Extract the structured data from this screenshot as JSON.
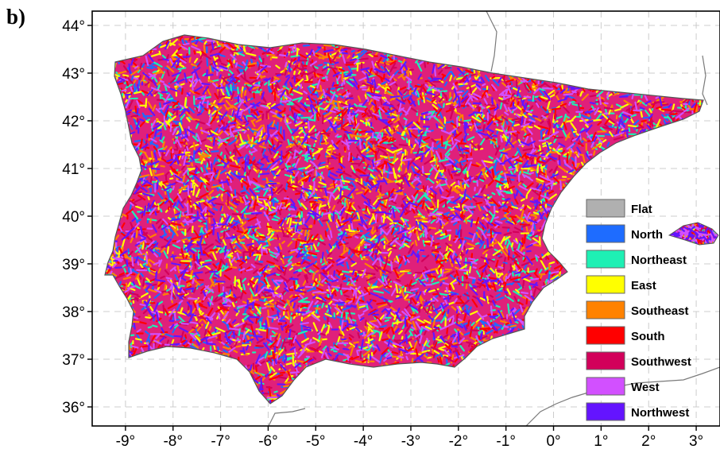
{
  "figure": {
    "panel_label": "b)"
  },
  "map": {
    "lon_ticks": [
      "-9°",
      "-8°",
      "-7°",
      "-6°",
      "-5°",
      "-4°",
      "-3°",
      "-2°",
      "-1°",
      "0°",
      "1°",
      "2°",
      "3°"
    ],
    "lat_ticks": [
      "44°",
      "43°",
      "42°",
      "41°",
      "40°",
      "39°",
      "38°",
      "37°",
      "36°"
    ],
    "lon_values": [
      -9,
      -8,
      -7,
      -6,
      -5,
      -4,
      -3,
      -2,
      -1,
      0,
      1,
      2,
      3
    ],
    "lat_values": [
      44,
      43,
      42,
      41,
      40,
      39,
      38,
      37,
      36
    ],
    "lon_range": [
      -9.7,
      3.5
    ],
    "lat_range": [
      35.6,
      44.3
    ],
    "grid": true,
    "legend_position": "bottom-right",
    "colors": {
      "land_outline": "#555555",
      "grid": "#cccccc",
      "coast_other": "#7a7a7a"
    }
  },
  "legend": [
    {
      "label": "Flat",
      "color": "#b0b0b0"
    },
    {
      "label": "North",
      "color": "#1e6cff"
    },
    {
      "label": "Northeast",
      "color": "#1ef0b4"
    },
    {
      "label": "East",
      "color": "#ffff00"
    },
    {
      "label": "Southeast",
      "color": "#ff8200"
    },
    {
      "label": "South",
      "color": "#ff0000"
    },
    {
      "label": "Southwest",
      "color": "#d2005a"
    },
    {
      "label": "West",
      "color": "#d250ff"
    },
    {
      "label": "Northwest",
      "color": "#6414ff"
    }
  ]
}
